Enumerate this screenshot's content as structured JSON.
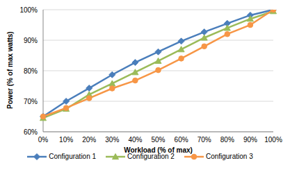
{
  "chart_data": {
    "type": "line",
    "x_label": "Workload (% of max)",
    "y_label": "Power (% of max watts)",
    "categories": [
      "0%",
      "10%",
      "20%",
      "30%",
      "40%",
      "50%",
      "60%",
      "70%",
      "80%",
      "90%",
      "100%"
    ],
    "series": [
      {
        "name": "Configuration 1",
        "color": "#4a7ebb",
        "marker": "diamond",
        "values": [
          65,
          70,
          74.3,
          78.7,
          82.7,
          86.2,
          89.7,
          92.7,
          95.5,
          98.2,
          100
        ]
      },
      {
        "name": "Configuration 2",
        "color": "#9bbb59",
        "marker": "triangle",
        "values": [
          64.5,
          67.5,
          72.2,
          75.8,
          79.5,
          83.2,
          87,
          90.8,
          94,
          97,
          99.5
        ]
      },
      {
        "name": "Configuration 3",
        "color": "#f79646",
        "marker": "circle",
        "values": [
          65,
          67.8,
          71,
          74.2,
          76.8,
          80.2,
          84,
          88,
          92,
          95,
          100
        ]
      }
    ],
    "ylim": [
      60,
      100
    ],
    "yticks": [
      {
        "value": 60,
        "label": "60%"
      },
      {
        "value": 70,
        "label": "70%"
      },
      {
        "value": 80,
        "label": "80%"
      },
      {
        "value": 90,
        "label": "90%"
      },
      {
        "value": 100,
        "label": "100%"
      }
    ],
    "grid": true,
    "legend": "bottom"
  }
}
